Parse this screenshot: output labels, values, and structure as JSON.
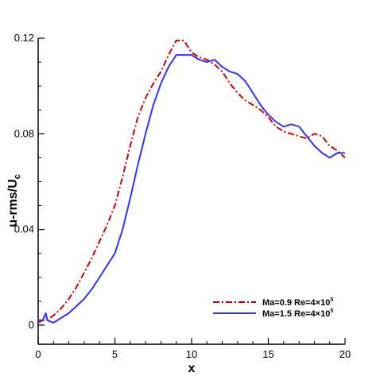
{
  "chart_data": {
    "type": "line",
    "xlabel": "x",
    "ylabel": "u-rms/U",
    "ylabel_subscript": "c",
    "xlim": [
      0,
      20
    ],
    "ylim": [
      -0.008,
      0.12
    ],
    "x_ticks": [
      0,
      5,
      10,
      15,
      20
    ],
    "x_tick_labels": [
      "0",
      "5",
      "10",
      "15",
      "20"
    ],
    "y_ticks": [
      0,
      0.04,
      0.08,
      0.12
    ],
    "y_tick_labels": [
      "0",
      "0.04",
      "0.08",
      "0.12"
    ],
    "grid": false,
    "legend_position": "bottom-right",
    "series": [
      {
        "name": "Ma=0.9 Re=4×10",
        "name_superscript": "5",
        "color": "#cc0000",
        "style": "dash-dot",
        "points": [
          [
            0,
            0.002
          ],
          [
            0.5,
            0.002
          ],
          [
            1.0,
            0.004
          ],
          [
            1.5,
            0.007
          ],
          [
            2.0,
            0.011
          ],
          [
            2.5,
            0.016
          ],
          [
            3.0,
            0.022
          ],
          [
            3.5,
            0.028
          ],
          [
            4.0,
            0.035
          ],
          [
            4.5,
            0.042
          ],
          [
            5.0,
            0.05
          ],
          [
            5.5,
            0.062
          ],
          [
            6.0,
            0.075
          ],
          [
            6.5,
            0.087
          ],
          [
            7.0,
            0.095
          ],
          [
            7.5,
            0.101
          ],
          [
            8.0,
            0.106
          ],
          [
            8.5,
            0.113
          ],
          [
            9.0,
            0.119
          ],
          [
            9.5,
            0.119
          ],
          [
            10.0,
            0.114
          ],
          [
            10.5,
            0.112
          ],
          [
            11.0,
            0.111
          ],
          [
            11.5,
            0.109
          ],
          [
            12.0,
            0.106
          ],
          [
            12.5,
            0.101
          ],
          [
            13.0,
            0.097
          ],
          [
            13.5,
            0.094
          ],
          [
            14.0,
            0.092
          ],
          [
            14.5,
            0.09
          ],
          [
            15.0,
            0.087
          ],
          [
            15.5,
            0.083
          ],
          [
            16.0,
            0.081
          ],
          [
            16.5,
            0.08
          ],
          [
            17.0,
            0.079
          ],
          [
            17.5,
            0.078
          ],
          [
            18.0,
            0.08
          ],
          [
            18.5,
            0.079
          ],
          [
            19.0,
            0.075
          ],
          [
            19.5,
            0.073
          ],
          [
            20.0,
            0.07
          ]
        ]
      },
      {
        "name": "Ma=1.5 Re=4×10",
        "name_superscript": "5",
        "color": "#3333ee",
        "style": "solid",
        "points": [
          [
            0,
            0.001
          ],
          [
            0.3,
            0.002
          ],
          [
            0.5,
            0.005
          ],
          [
            0.6,
            0.002
          ],
          [
            1.0,
            0.001
          ],
          [
            1.5,
            0.003
          ],
          [
            2.0,
            0.005
          ],
          [
            2.5,
            0.008
          ],
          [
            3.0,
            0.011
          ],
          [
            3.5,
            0.015
          ],
          [
            4.0,
            0.02
          ],
          [
            4.5,
            0.025
          ],
          [
            5.0,
            0.03
          ],
          [
            5.5,
            0.04
          ],
          [
            6.0,
            0.053
          ],
          [
            6.5,
            0.067
          ],
          [
            7.0,
            0.08
          ],
          [
            7.5,
            0.092
          ],
          [
            8.0,
            0.101
          ],
          [
            8.5,
            0.108
          ],
          [
            9.0,
            0.113
          ],
          [
            9.5,
            0.113
          ],
          [
            10.0,
            0.113
          ],
          [
            10.5,
            0.111
          ],
          [
            11.0,
            0.11
          ],
          [
            11.5,
            0.111
          ],
          [
            12.0,
            0.108
          ],
          [
            12.5,
            0.106
          ],
          [
            13.0,
            0.105
          ],
          [
            13.5,
            0.102
          ],
          [
            14.0,
            0.097
          ],
          [
            14.5,
            0.092
          ],
          [
            15.0,
            0.088
          ],
          [
            15.5,
            0.085
          ],
          [
            16.0,
            0.083
          ],
          [
            16.5,
            0.084
          ],
          [
            17.0,
            0.083
          ],
          [
            17.5,
            0.079
          ],
          [
            18.0,
            0.075
          ],
          [
            18.5,
            0.072
          ],
          [
            19.0,
            0.07
          ],
          [
            19.5,
            0.072
          ],
          [
            20.0,
            0.072
          ]
        ]
      }
    ]
  }
}
